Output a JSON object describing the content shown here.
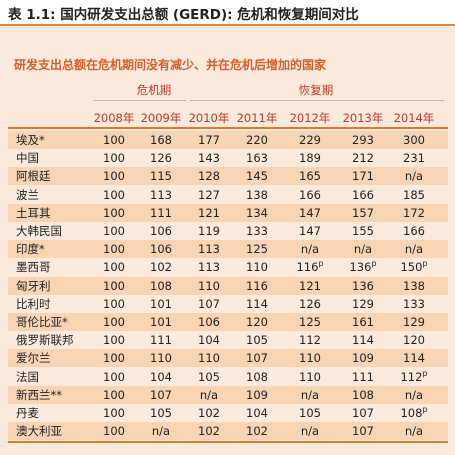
{
  "title": "表 1.1: 国内研发支出总额 (GERD): 危机和恢复期间对比",
  "subtitle": "研发支出总额在危机期间没有减少、并在危机后增加的国家",
  "groups": {
    "crisis": "危机期",
    "recovery": "恢复期"
  },
  "years": [
    "2008年",
    "2009年",
    "2010年",
    "2011年",
    "2012年",
    "2013年",
    "2014年"
  ],
  "rows": [
    {
      "country": "埃及*",
      "v": [
        "100",
        "168",
        "177",
        "220",
        "229",
        "293",
        "300"
      ],
      "s": [
        "",
        "",
        "",
        "",
        "",
        "",
        ""
      ]
    },
    {
      "country": "中国",
      "v": [
        "100",
        "126",
        "143",
        "163",
        "189",
        "212",
        "231"
      ],
      "s": [
        "",
        "",
        "",
        "",
        "",
        "",
        ""
      ]
    },
    {
      "country": "阿根廷",
      "v": [
        "100",
        "115",
        "128",
        "145",
        "165",
        "171",
        "n/a"
      ],
      "s": [
        "",
        "",
        "",
        "",
        "",
        "",
        ""
      ]
    },
    {
      "country": "波兰",
      "v": [
        "100",
        "113",
        "127",
        "138",
        "166",
        "166",
        "185"
      ],
      "s": [
        "",
        "",
        "",
        "",
        "",
        "",
        ""
      ]
    },
    {
      "country": "土耳其",
      "v": [
        "100",
        "111",
        "121",
        "134",
        "147",
        "157",
        "172"
      ],
      "s": [
        "",
        "",
        "",
        "",
        "",
        "",
        ""
      ]
    },
    {
      "country": "大韩民国",
      "v": [
        "100",
        "106",
        "119",
        "133",
        "147",
        "155",
        "166"
      ],
      "s": [
        "",
        "",
        "",
        "",
        "",
        "",
        ""
      ]
    },
    {
      "country": "印度*",
      "v": [
        "100",
        "106",
        "113",
        "125",
        "n/a",
        "n/a",
        "n/a"
      ],
      "s": [
        "",
        "",
        "",
        "",
        "",
        "",
        ""
      ]
    },
    {
      "country": "墨西哥",
      "v": [
        "100",
        "102",
        "113",
        "110",
        "116",
        "136",
        "150"
      ],
      "s": [
        "",
        "",
        "",
        "",
        "p",
        "p",
        "p"
      ]
    },
    {
      "country": "匈牙利",
      "v": [
        "100",
        "108",
        "110",
        "116",
        "121",
        "136",
        "138"
      ],
      "s": [
        "",
        "",
        "",
        "",
        "",
        "",
        ""
      ]
    },
    {
      "country": "比利时",
      "v": [
        "100",
        "101",
        "107",
        "114",
        "126",
        "129",
        "133"
      ],
      "s": [
        "",
        "",
        "",
        "",
        "",
        "",
        ""
      ]
    },
    {
      "country": "哥伦比亚*",
      "v": [
        "100",
        "101",
        "106",
        "120",
        "125",
        "161",
        "129"
      ],
      "s": [
        "",
        "",
        "",
        "",
        "",
        "",
        ""
      ]
    },
    {
      "country": "俄罗斯联邦",
      "v": [
        "100",
        "111",
        "104",
        "105",
        "112",
        "114",
        "120"
      ],
      "s": [
        "",
        "",
        "",
        "",
        "",
        "",
        ""
      ]
    },
    {
      "country": "爱尔兰",
      "v": [
        "100",
        "110",
        "110",
        "107",
        "110",
        "109",
        "114"
      ],
      "s": [
        "",
        "",
        "",
        "",
        "",
        "",
        ""
      ]
    },
    {
      "country": "法国",
      "v": [
        "100",
        "104",
        "105",
        "108",
        "110",
        "111",
        "112"
      ],
      "s": [
        "",
        "",
        "",
        "",
        "",
        "",
        "p"
      ]
    },
    {
      "country": "新西兰**",
      "v": [
        "100",
        "107",
        "n/a",
        "109",
        "n/a",
        "108",
        "n/a"
      ],
      "s": [
        "",
        "",
        "",
        "",
        "",
        "",
        ""
      ]
    },
    {
      "country": "丹麦",
      "v": [
        "100",
        "105",
        "102",
        "104",
        "105",
        "107",
        "108"
      ],
      "s": [
        "",
        "",
        "",
        "",
        "",
        "",
        "p"
      ]
    },
    {
      "country": "澳大利亚",
      "v": [
        "100",
        "n/a",
        "102",
        "102",
        "n/a",
        "107",
        "n/a"
      ],
      "s": [
        "",
        "",
        "",
        "",
        "",
        "",
        ""
      ]
    }
  ]
}
